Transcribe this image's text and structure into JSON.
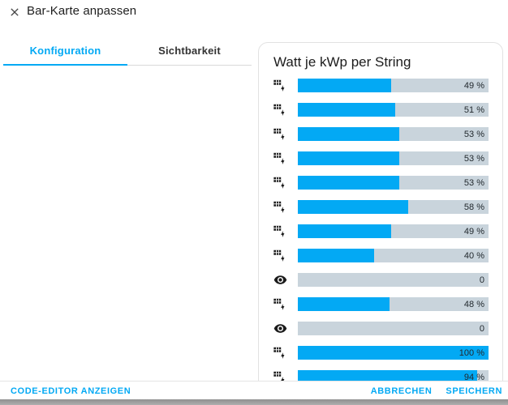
{
  "colors": {
    "accent": "#03a9f4",
    "bar_fill": "#03a9f4",
    "bar_bg": "#c9d4dc",
    "title_text": "#1e1e1e",
    "percent_text": "#22292e"
  },
  "header": {
    "title": "Bar-Karte anpassen",
    "close_icon": "close-x"
  },
  "tabs": [
    {
      "label": "Konfiguration",
      "active": true
    },
    {
      "label": "Sichtbarkeit",
      "active": false
    }
  ],
  "preview_card": {
    "title": "Watt je kWp per String",
    "rows": [
      {
        "icon": "solar-power-icon",
        "percent": 49,
        "label": "49 %"
      },
      {
        "icon": "solar-power-icon",
        "percent": 51,
        "label": "51 %"
      },
      {
        "icon": "solar-power-icon",
        "percent": 53,
        "label": "53 %"
      },
      {
        "icon": "solar-power-icon",
        "percent": 53,
        "label": "53 %"
      },
      {
        "icon": "solar-power-icon",
        "percent": 53,
        "label": "53 %"
      },
      {
        "icon": "solar-power-icon",
        "percent": 58,
        "label": "58 %"
      },
      {
        "icon": "solar-power-icon",
        "percent": 49,
        "label": "49 %"
      },
      {
        "icon": "solar-power-icon",
        "percent": 40,
        "label": "40 %"
      },
      {
        "icon": "eye-icon",
        "percent": 0,
        "label": "0"
      },
      {
        "icon": "solar-power-icon",
        "percent": 48,
        "label": "48 %"
      },
      {
        "icon": "eye-icon",
        "percent": 0,
        "label": "0"
      },
      {
        "icon": "solar-power-icon",
        "percent": 100,
        "label": "100 %"
      },
      {
        "icon": "solar-power-icon",
        "percent": 94,
        "label": "94 %"
      }
    ]
  },
  "footer": {
    "code_editor": "CODE-EDITOR ANZEIGEN",
    "cancel": "ABBRECHEN",
    "save": "SPEICHERN"
  }
}
